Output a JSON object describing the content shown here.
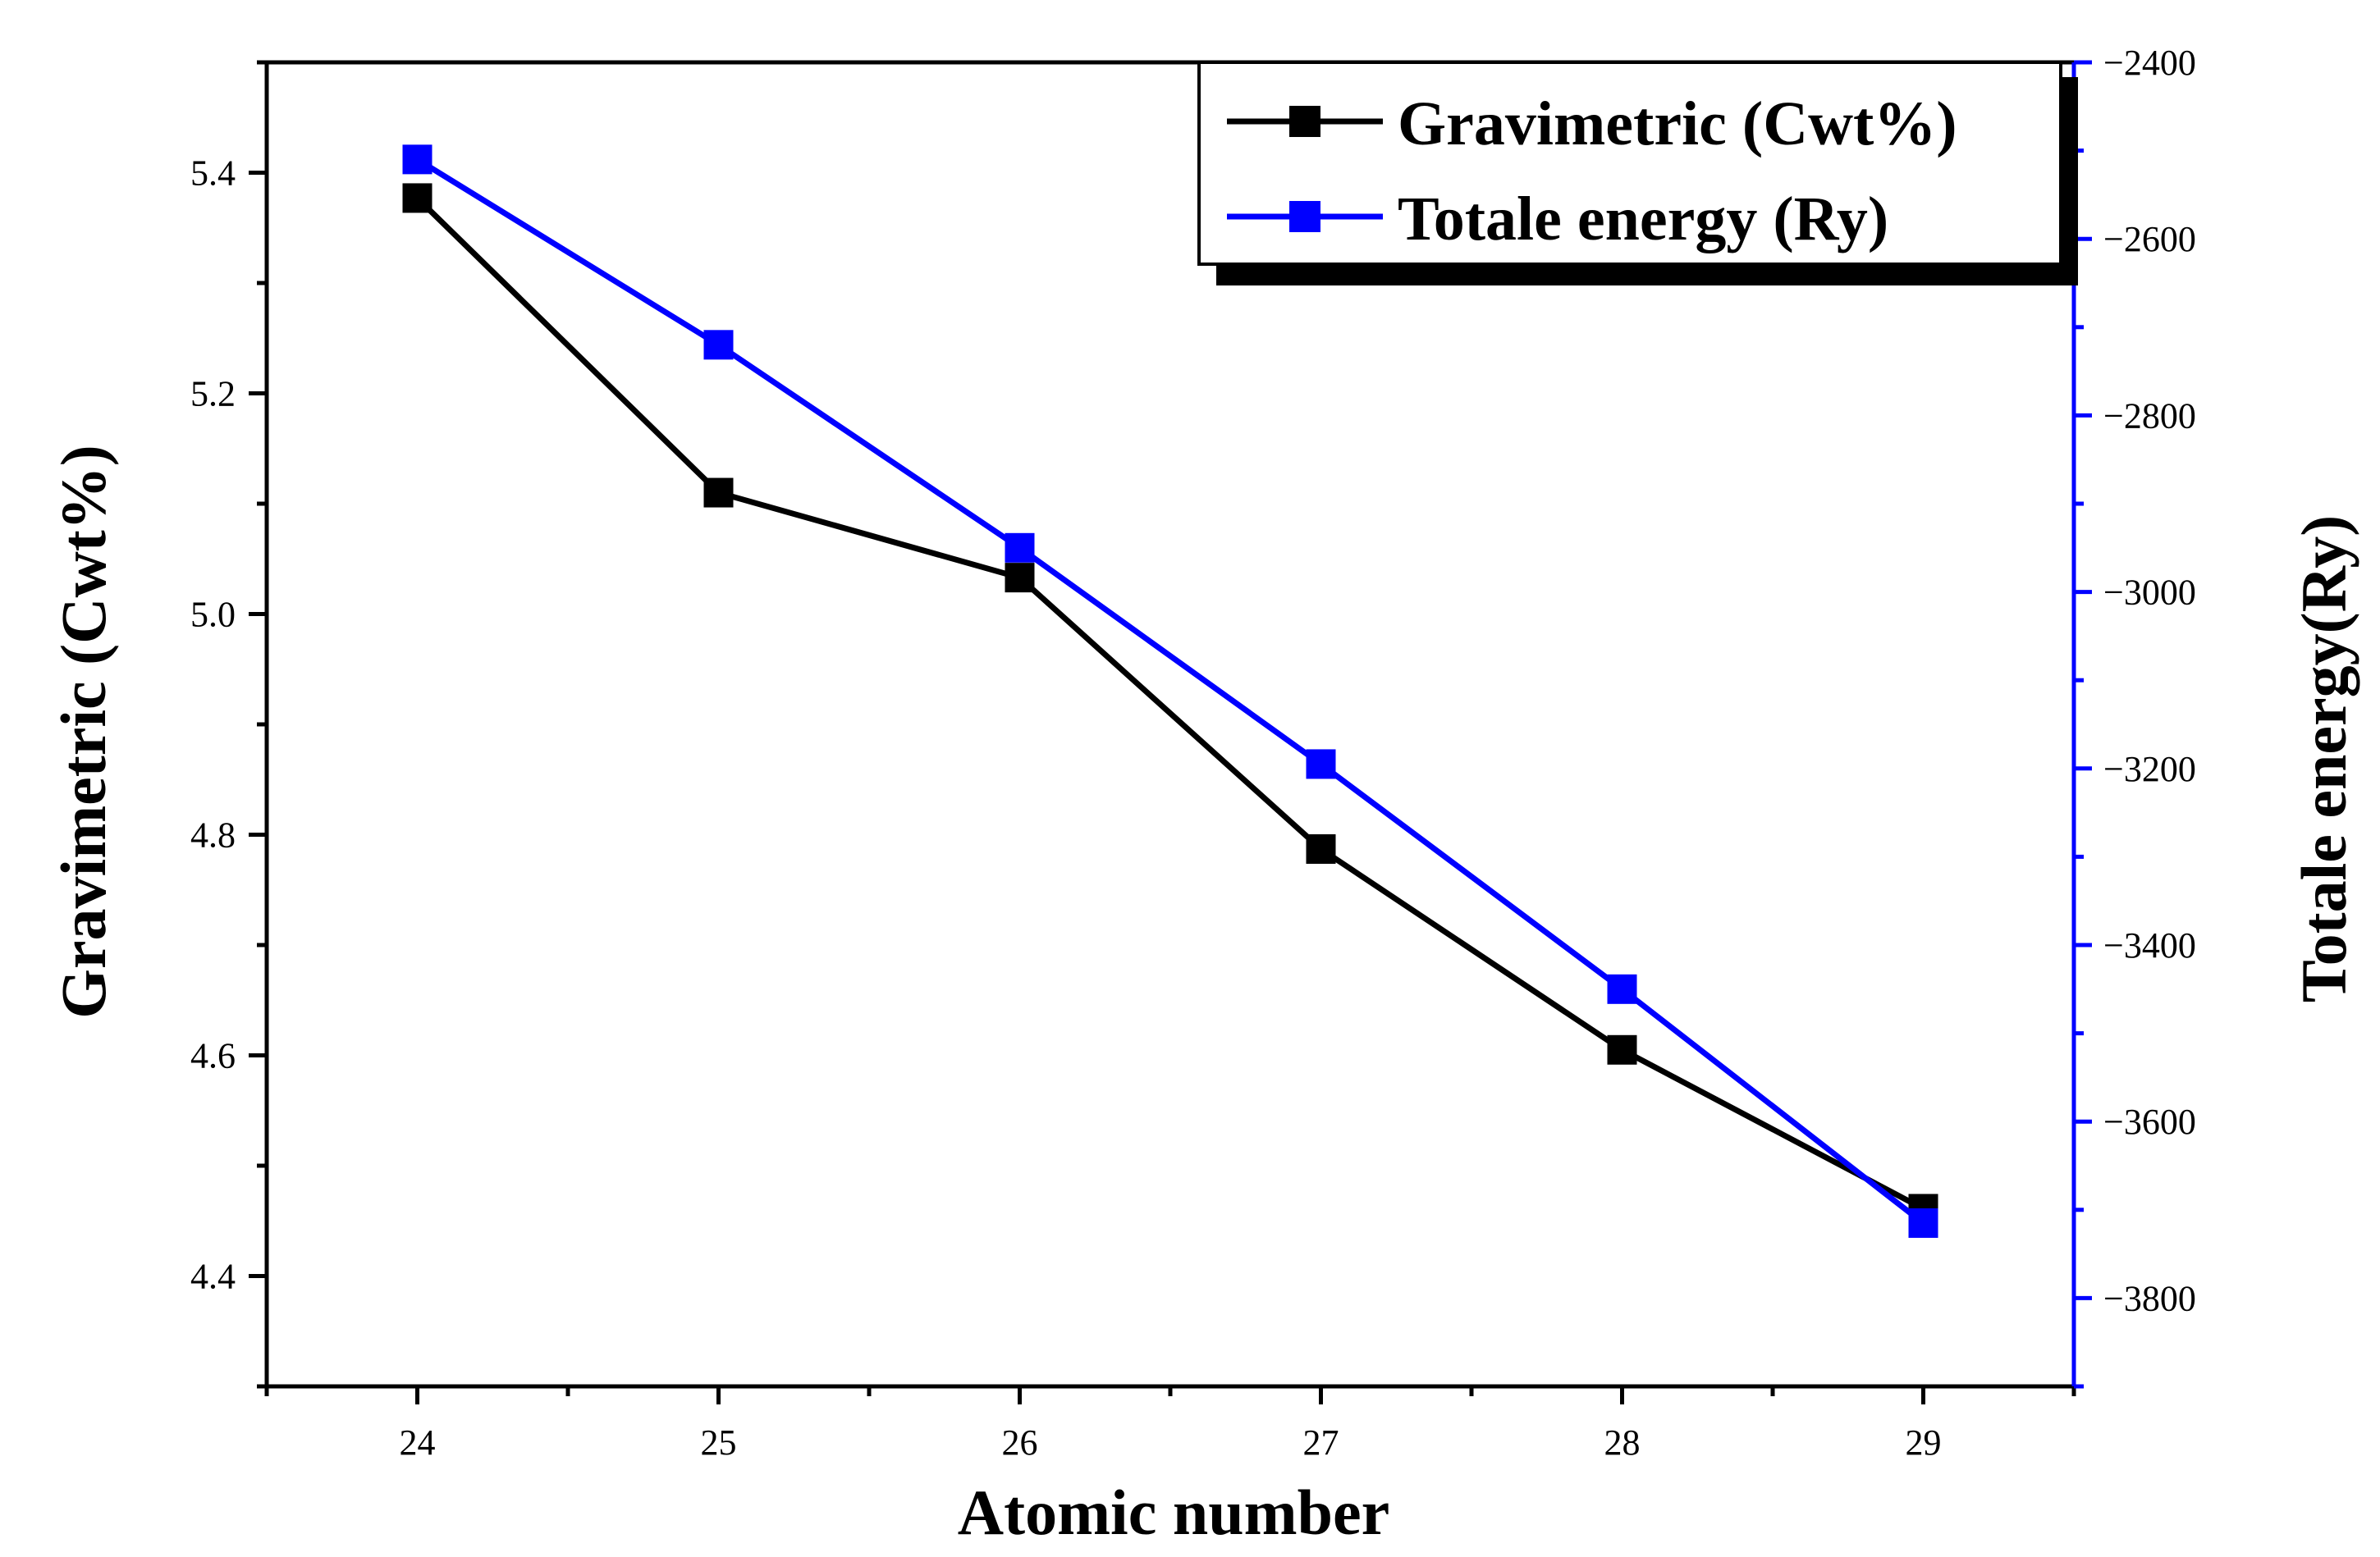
{
  "chart_data": {
    "type": "line",
    "xlabel": "Atomic number",
    "ylabel": "Gravimetric (Cwt%)",
    "ylabel_right": "Totale energy(Ry)",
    "x": [
      24,
      25,
      26,
      27,
      28,
      29
    ],
    "xlim": [
      23.5,
      29.5
    ],
    "ylim": [
      4.3,
      5.5
    ],
    "ylim_right": [
      -3900,
      -2400
    ],
    "x_ticks": [
      "24",
      "25",
      "26",
      "27",
      "28",
      "29"
    ],
    "y_ticks": [
      "4.4",
      "4.6",
      "4.8",
      "5.0",
      "5.2",
      "5.4"
    ],
    "y_ticks_right": [
      "−2400",
      "−2600",
      "−2800",
      "−3000",
      "−3200",
      "−3400",
      "−3600",
      "−3800"
    ],
    "series": [
      {
        "name": "Gravimetric (Cwt%)",
        "axis": "left",
        "color": "#000000",
        "marker": "square",
        "values": [
          5.377,
          5.11,
          5.033,
          4.787,
          4.605,
          4.461
        ]
      },
      {
        "name": "Totale energy (Ry)",
        "axis": "right",
        "color": "#0000ff",
        "marker": "square",
        "values": [
          -2510,
          -2720,
          -2950,
          -3195,
          -3450,
          -3715
        ]
      }
    ],
    "legend": {
      "position": "top-right",
      "entries": [
        "Gravimetric (Cwt%)",
        "Totale energy (Ry)"
      ]
    },
    "colors": {
      "left_axis": "#000000",
      "right_axis": "#0000ff",
      "frame": "#000000"
    },
    "grid": false
  }
}
